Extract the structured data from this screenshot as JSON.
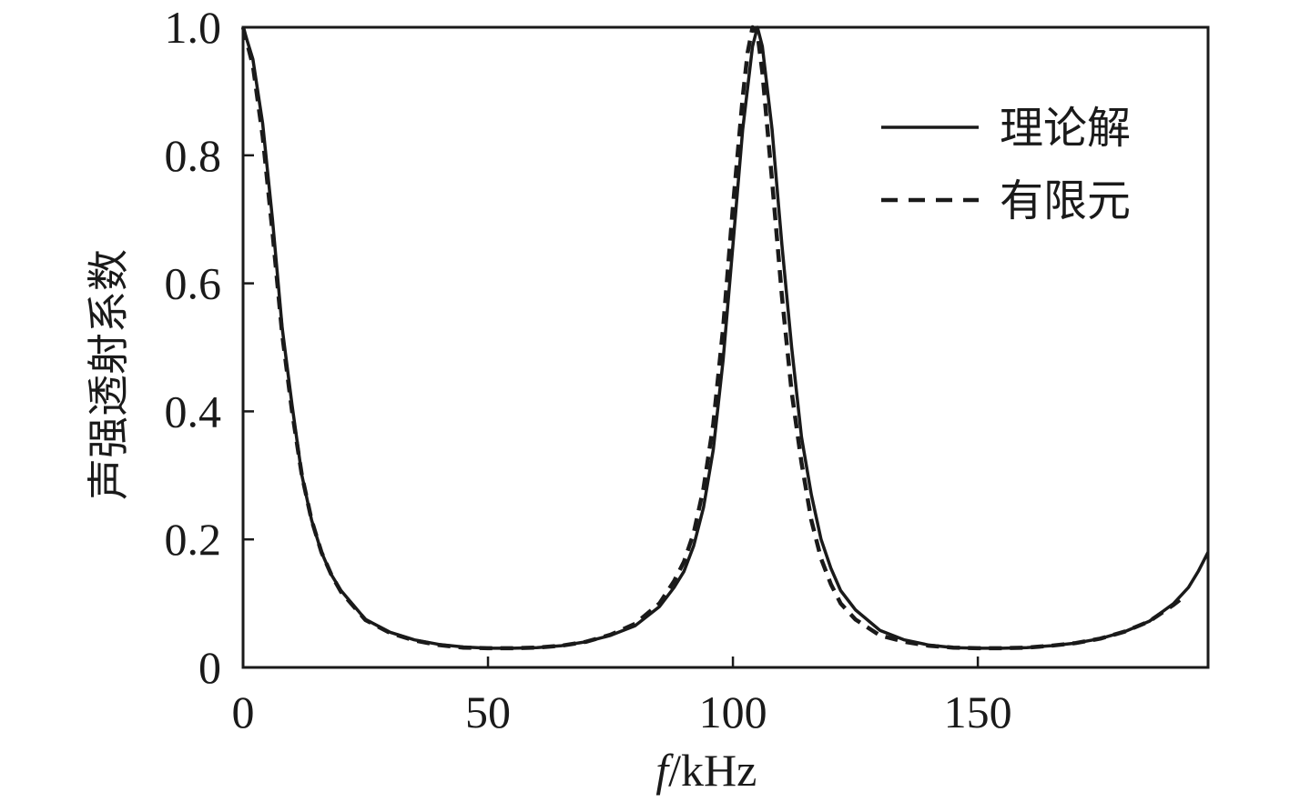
{
  "chart_data": {
    "type": "line",
    "xlabel_italic": "f",
    "xlabel_unit": "/kHz",
    "ylabel": "声强透射系数",
    "xlim": [
      0,
      197
    ],
    "ylim": [
      0,
      1.0
    ],
    "x_ticks": [
      0,
      50,
      100,
      150
    ],
    "x_tick_labels": [
      "0",
      "50",
      "100",
      "150"
    ],
    "y_ticks": [
      0,
      0.2,
      0.4,
      0.6,
      0.8,
      1.0
    ],
    "y_tick_labels": [
      "0",
      "0.2",
      "0.4",
      "0.6",
      "0.8",
      "1.0"
    ],
    "grid": false,
    "legend_position": "top-right",
    "series": [
      {
        "name": "理论解",
        "style": "solid",
        "color": "#1a1a1a",
        "x": [
          0,
          2,
          4,
          6,
          8,
          10,
          12,
          14,
          16,
          18,
          20,
          25,
          30,
          35,
          40,
          45,
          50,
          55,
          60,
          65,
          70,
          75,
          80,
          85,
          88,
          90,
          92,
          94,
          96,
          98,
          100,
          102,
          104,
          105,
          106,
          108,
          110,
          112,
          114,
          116,
          118,
          120,
          122,
          125,
          130,
          135,
          140,
          145,
          150,
          155,
          160,
          165,
          170,
          175,
          180,
          185,
          190,
          193,
          195,
          197
        ],
        "y": [
          1.0,
          0.95,
          0.85,
          0.7,
          0.53,
          0.41,
          0.3,
          0.23,
          0.18,
          0.145,
          0.12,
          0.075,
          0.055,
          0.043,
          0.036,
          0.032,
          0.03,
          0.03,
          0.031,
          0.034,
          0.04,
          0.05,
          0.065,
          0.095,
          0.125,
          0.15,
          0.19,
          0.25,
          0.34,
          0.48,
          0.66,
          0.84,
          0.97,
          1.0,
          0.97,
          0.84,
          0.66,
          0.5,
          0.36,
          0.27,
          0.2,
          0.155,
          0.12,
          0.09,
          0.058,
          0.043,
          0.035,
          0.031,
          0.03,
          0.03,
          0.031,
          0.034,
          0.038,
          0.045,
          0.056,
          0.072,
          0.1,
          0.125,
          0.15,
          0.18
        ]
      },
      {
        "name": "有限元",
        "style": "dashed",
        "color": "#1a1a1a",
        "x": [
          0,
          2,
          4,
          6,
          8,
          10,
          12,
          14,
          16,
          18,
          20,
          25,
          30,
          35,
          40,
          45,
          50,
          55,
          60,
          65,
          70,
          75,
          80,
          85,
          88,
          90,
          92,
          94,
          96,
          98,
          100,
          102,
          103,
          104,
          105,
          106,
          108,
          110,
          112,
          114,
          116,
          118,
          120,
          122,
          125,
          130,
          135,
          140,
          145,
          150,
          155,
          160,
          165,
          170,
          175,
          180,
          185,
          190,
          192
        ],
        "y": [
          1.0,
          0.94,
          0.83,
          0.68,
          0.52,
          0.4,
          0.3,
          0.23,
          0.18,
          0.145,
          0.118,
          0.074,
          0.054,
          0.042,
          0.035,
          0.031,
          0.03,
          0.03,
          0.031,
          0.034,
          0.04,
          0.051,
          0.068,
          0.1,
          0.135,
          0.165,
          0.21,
          0.28,
          0.38,
          0.53,
          0.72,
          0.89,
          0.96,
          1.0,
          0.99,
          0.93,
          0.76,
          0.58,
          0.43,
          0.32,
          0.23,
          0.17,
          0.13,
          0.1,
          0.075,
          0.05,
          0.04,
          0.034,
          0.031,
          0.03,
          0.03,
          0.031,
          0.034,
          0.038,
          0.045,
          0.056,
          0.072,
          0.098,
          0.11
        ]
      }
    ]
  }
}
